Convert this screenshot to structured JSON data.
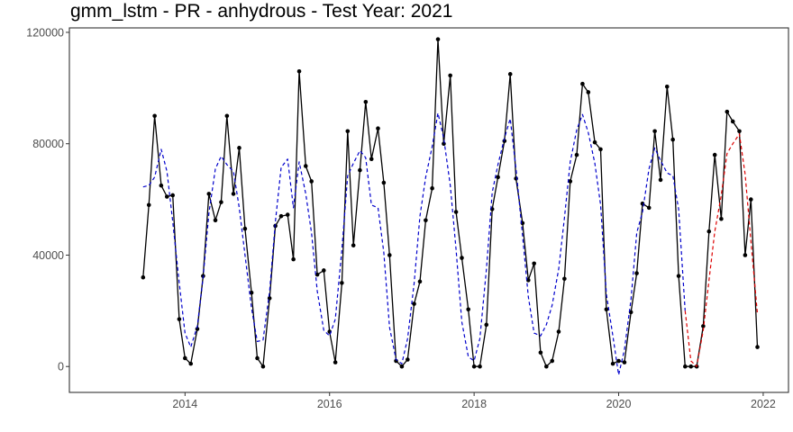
{
  "chart_data": {
    "type": "line",
    "title": "gmm_lstm - PR - anhydrous - Test Year: 2021",
    "xlabel": "",
    "ylabel": "",
    "xlim": [
      2012.4,
      2022.35
    ],
    "ylim": [
      -9300,
      121600
    ],
    "x_ticks": [
      2014,
      2016,
      2018,
      2020,
      2022
    ],
    "x_tick_labels": [
      "2014",
      "2016",
      "2018",
      "2020",
      "2022"
    ],
    "y_ticks": [
      0,
      40000,
      80000,
      120000
    ],
    "y_tick_labels": [
      "0",
      "40000",
      "80000",
      "120000"
    ],
    "grid": false,
    "legend": "none",
    "colors": {
      "actual": "#000000",
      "fitted": "#0000cc",
      "forecast": "#dd0000",
      "axis": "#333333"
    },
    "series": [
      {
        "style": "solid-with-points",
        "color": "#000000",
        "x": [
          2013.42,
          2013.5,
          2013.58,
          2013.67,
          2013.75,
          2013.83,
          2013.92,
          2014.0,
          2014.08,
          2014.17,
          2014.25,
          2014.33,
          2014.42,
          2014.5,
          2014.58,
          2014.67,
          2014.75,
          2014.83,
          2014.92,
          2015.0,
          2015.08,
          2015.17,
          2015.25,
          2015.33,
          2015.42,
          2015.5,
          2015.58,
          2015.67,
          2015.75,
          2015.83,
          2015.92,
          2016.0,
          2016.08,
          2016.17,
          2016.25,
          2016.33,
          2016.42,
          2016.5,
          2016.58,
          2016.67,
          2016.75,
          2016.83,
          2016.92,
          2017.0,
          2017.08,
          2017.17,
          2017.25,
          2017.33,
          2017.42,
          2017.5,
          2017.58,
          2017.67,
          2017.75,
          2017.83,
          2017.92,
          2018.0,
          2018.08,
          2018.17,
          2018.25,
          2018.33,
          2018.42,
          2018.5,
          2018.58,
          2018.67,
          2018.75,
          2018.83,
          2018.92,
          2019.0,
          2019.08,
          2019.17,
          2019.25,
          2019.33,
          2019.42,
          2019.5,
          2019.58,
          2019.67,
          2019.75,
          2019.83,
          2019.92,
          2020.0,
          2020.08,
          2020.17,
          2020.25,
          2020.33,
          2020.42,
          2020.5,
          2020.58,
          2020.67,
          2020.75,
          2020.83,
          2020.92,
          2021.0,
          2021.08,
          2021.17,
          2021.25,
          2021.33,
          2021.42,
          2021.5,
          2021.58,
          2021.67,
          2021.75,
          2021.83,
          2021.92
        ],
        "y": [
          32000,
          58000,
          90000,
          65000,
          61000,
          61500,
          17000,
          3000,
          1000,
          13500,
          32500,
          62000,
          52500,
          59000,
          90000,
          62000,
          78500,
          49500,
          26500,
          3000,
          0,
          24500,
          50500,
          54000,
          54500,
          38500,
          106000,
          72000,
          66500,
          33000,
          34500,
          12500,
          1500,
          30000,
          84500,
          43500,
          70500,
          95000,
          74500,
          85500,
          66000,
          40000,
          2000,
          0,
          2500,
          22500,
          30500,
          52500,
          64000,
          117500,
          80000,
          104500,
          55500,
          39000,
          20500,
          0,
          0,
          15000,
          56500,
          68000,
          81000,
          105000,
          67500,
          51500,
          31000,
          37000,
          5000,
          0,
          2000,
          12500,
          31500,
          66500,
          76000,
          101500,
          98500,
          80500,
          78000,
          20500,
          1000,
          2000,
          1500,
          19500,
          33500,
          58500,
          57000,
          84500,
          67000,
          100500,
          81500,
          32500,
          0,
          0,
          0,
          14500,
          48500,
          76000,
          53000,
          91500,
          88000,
          84500,
          40000,
          60000,
          7000
        ]
      },
      {
        "style": "dashed",
        "color": "#0000cc",
        "x": [
          2013.42,
          2013.5,
          2013.58,
          2013.67,
          2013.75,
          2013.83,
          2013.92,
          2014.0,
          2014.08,
          2014.17,
          2014.25,
          2014.33,
          2014.42,
          2014.5,
          2014.58,
          2014.67,
          2014.75,
          2014.83,
          2014.92,
          2015.0,
          2015.08,
          2015.17,
          2015.25,
          2015.33,
          2015.42,
          2015.5,
          2015.58,
          2015.67,
          2015.75,
          2015.83,
          2015.92,
          2016.0,
          2016.08,
          2016.17,
          2016.25,
          2016.33,
          2016.42,
          2016.5,
          2016.58,
          2016.67,
          2016.75,
          2016.83,
          2016.92,
          2017.0,
          2017.08,
          2017.17,
          2017.25,
          2017.33,
          2017.42,
          2017.5,
          2017.58,
          2017.67,
          2017.75,
          2017.83,
          2017.92,
          2018.0,
          2018.08,
          2018.17,
          2018.25,
          2018.33,
          2018.42,
          2018.5,
          2018.58,
          2018.67,
          2018.75,
          2018.83,
          2018.92,
          2019.0,
          2019.08,
          2019.17,
          2019.25,
          2019.33,
          2019.42,
          2019.5,
          2019.58,
          2019.67,
          2019.75,
          2019.83,
          2019.92,
          2020.0,
          2020.08,
          2020.17,
          2020.25,
          2020.33,
          2020.42,
          2020.5,
          2020.58,
          2020.67,
          2020.75,
          2020.83,
          2020.92
        ],
        "y": [
          64500,
          65000,
          68000,
          78000,
          70000,
          52000,
          30000,
          12000,
          7000,
          14500,
          32000,
          55000,
          71000,
          75500,
          72500,
          70000,
          57000,
          40000,
          21000,
          9000,
          9500,
          27000,
          52000,
          71500,
          74500,
          57000,
          73500,
          62000,
          48000,
          27000,
          13000,
          11000,
          17000,
          42000,
          68500,
          73000,
          77500,
          75000,
          58000,
          57000,
          41000,
          14000,
          2500,
          1000,
          10000,
          30000,
          54000,
          68000,
          79000,
          91000,
          82000,
          65000,
          42000,
          16000,
          3500,
          2000,
          10000,
          35000,
          62500,
          72500,
          82000,
          89000,
          71000,
          47000,
          25000,
          12000,
          11000,
          15000,
          22000,
          35000,
          53500,
          73500,
          85000,
          90500,
          84000,
          73000,
          58000,
          26000,
          11000,
          -3000,
          6000,
          24000,
          48000,
          55500,
          71000,
          78500,
          74000,
          69500,
          68500,
          56500,
          20000
        ]
      },
      {
        "style": "dashed",
        "color": "#dd0000",
        "x": [
          2020.92,
          2021.0,
          2021.08,
          2021.17,
          2021.25,
          2021.33,
          2021.42,
          2021.5,
          2021.58,
          2021.67,
          2021.75,
          2021.83,
          2021.92
        ],
        "y": [
          20000,
          2000,
          0,
          13000,
          31000,
          48500,
          61500,
          76500,
          80000,
          83500,
          69000,
          45000,
          19000
        ]
      }
    ]
  }
}
